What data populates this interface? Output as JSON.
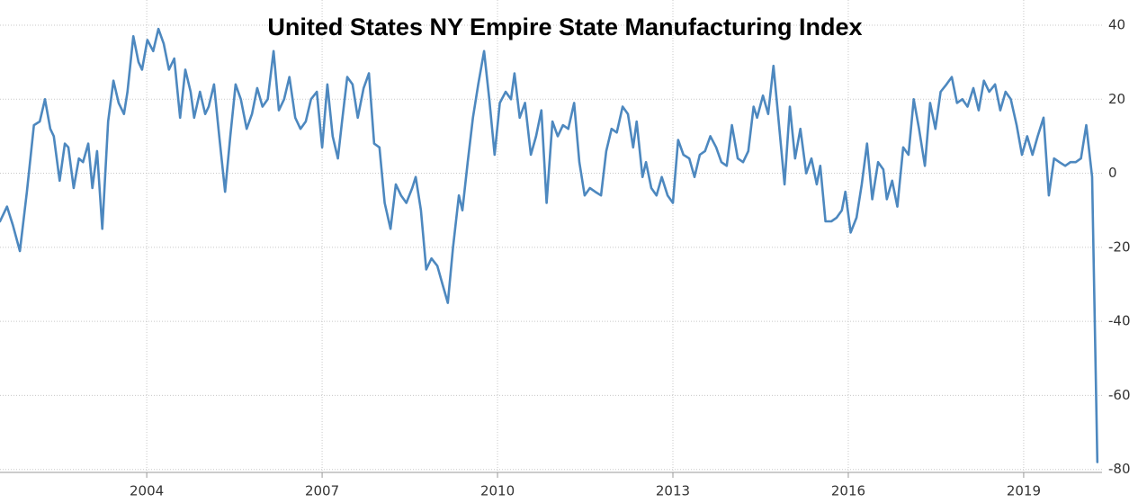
{
  "chart_data": {
    "type": "line",
    "title": "United States NY Empire State Manufacturing Index",
    "x": [
      2001.49,
      2001.61,
      2001.71,
      2001.83,
      2001.95,
      2002.07,
      2002.17,
      2002.26,
      2002.35,
      2002.41,
      2002.51,
      2002.6,
      2002.66,
      2002.75,
      2002.84,
      2002.91,
      2003.0,
      2003.07,
      2003.15,
      2003.24,
      2003.34,
      2003.43,
      2003.52,
      2003.61,
      2003.67,
      2003.77,
      2003.86,
      2003.92,
      2004.01,
      2004.11,
      2004.2,
      2004.29,
      2004.38,
      2004.47,
      2004.57,
      2004.66,
      2004.75,
      2004.81,
      2004.91,
      2005.0,
      2005.06,
      2005.15,
      2005.24,
      2005.34,
      2005.43,
      2005.52,
      2005.61,
      2005.71,
      2005.8,
      2005.89,
      2005.98,
      2006.07,
      2006.17,
      2006.26,
      2006.35,
      2006.44,
      2006.54,
      2006.63,
      2006.72,
      2006.81,
      2006.91,
      2007.0,
      2007.09,
      2007.18,
      2007.27,
      2007.34,
      2007.43,
      2007.52,
      2007.61,
      2007.71,
      2007.8,
      2007.89,
      2007.98,
      2008.07,
      2008.17,
      2008.26,
      2008.35,
      2008.44,
      2008.54,
      2008.6,
      2008.69,
      2008.78,
      2008.87,
      2008.97,
      2009.06,
      2009.15,
      2009.24,
      2009.34,
      2009.4,
      2009.49,
      2009.58,
      2009.67,
      2009.77,
      2009.86,
      2009.95,
      2010.04,
      2010.14,
      2010.23,
      2010.29,
      2010.38,
      2010.47,
      2010.57,
      2010.66,
      2010.75,
      2010.84,
      2010.94,
      2011.03,
      2011.12,
      2011.21,
      2011.31,
      2011.4,
      2011.49,
      2011.58,
      2011.67,
      2011.77,
      2011.86,
      2011.95,
      2012.04,
      2012.14,
      2012.23,
      2012.32,
      2012.38,
      2012.48,
      2012.54,
      2012.63,
      2012.72,
      2012.81,
      2012.91,
      2013.0,
      2013.09,
      2013.18,
      2013.28,
      2013.37,
      2013.46,
      2013.55,
      2013.64,
      2013.74,
      2013.83,
      2013.92,
      2014.01,
      2014.11,
      2014.2,
      2014.29,
      2014.38,
      2014.44,
      2014.54,
      2014.63,
      2014.72,
      2014.81,
      2014.91,
      2015.0,
      2015.09,
      2015.18,
      2015.28,
      2015.37,
      2015.46,
      2015.52,
      2015.61,
      2015.71,
      2015.8,
      2015.89,
      2015.95,
      2016.04,
      2016.14,
      2016.23,
      2016.32,
      2016.41,
      2016.51,
      2016.6,
      2016.66,
      2016.75,
      2016.84,
      2016.94,
      2017.03,
      2017.12,
      2017.21,
      2017.31,
      2017.4,
      2017.49,
      2017.58,
      2017.68,
      2017.77,
      2017.86,
      2017.95,
      2018.04,
      2018.14,
      2018.23,
      2018.32,
      2018.41,
      2018.51,
      2018.6,
      2018.69,
      2018.78,
      2018.88,
      2018.97,
      2019.06,
      2019.15,
      2019.24,
      2019.34,
      2019.43,
      2019.52,
      2019.61,
      2019.71,
      2019.8,
      2019.89,
      2019.98,
      2020.07,
      2020.17,
      2020.26
    ],
    "values": [
      -13,
      -9,
      -14,
      -21,
      -5,
      13,
      14,
      20,
      12,
      10,
      -2,
      8,
      7,
      -4,
      4,
      3,
      8,
      -4,
      6,
      -15,
      14,
      25,
      19,
      16,
      22,
      37,
      30,
      28,
      36,
      33,
      39,
      35,
      28,
      31,
      15,
      28,
      22,
      15,
      22,
      16,
      18,
      24,
      10,
      -5,
      10,
      24,
      20,
      12,
      16,
      23,
      18,
      20,
      33,
      17,
      20,
      26,
      15,
      12,
      14,
      20,
      22,
      7,
      24,
      10,
      4,
      14,
      26,
      24,
      15,
      23,
      27,
      8,
      7,
      -8,
      -15,
      -3,
      -6,
      -8,
      -4,
      -1,
      -10,
      -26,
      -23,
      -25,
      -30,
      -35,
      -20,
      -6,
      -10,
      3,
      15,
      24,
      33,
      20,
      5,
      19,
      22,
      20,
      27,
      15,
      19,
      5,
      10,
      17,
      -8,
      14,
      10,
      13,
      12,
      19,
      3,
      -6,
      -4,
      -5,
      -6,
      6,
      12,
      11,
      18,
      16,
      7,
      14,
      -1,
      3,
      -4,
      -6,
      -1,
      -6,
      -8,
      9,
      5,
      4,
      -1,
      5,
      6,
      10,
      7,
      3,
      2,
      13,
      4,
      3,
      6,
      18,
      15,
      21,
      16,
      29,
      14,
      -3,
      18,
      4,
      12,
      0,
      4,
      -3,
      2,
      -13,
      -13,
      -12,
      -10,
      -5,
      -16,
      -12,
      -3,
      8,
      -7,
      3,
      1,
      -7,
      -2,
      -9,
      7,
      5,
      20,
      12,
      2,
      19,
      12,
      22,
      24,
      26,
      19,
      20,
      18,
      23,
      17,
      25,
      22,
      24,
      17,
      22,
      20,
      13,
      5,
      10,
      5,
      10,
      15,
      -6,
      4,
      3,
      2,
      3,
      3,
      4,
      13,
      -1,
      -78
    ],
    "color": "#4d88bf",
    "xlim": [
      2001.49,
      2020.34
    ],
    "xticks": [
      2004,
      2007,
      2010,
      2013,
      2016,
      2019
    ],
    "ylim": [
      -80.8,
      46.8
    ],
    "yticks": [
      -80,
      -60,
      -40,
      -20,
      0,
      20,
      40
    ],
    "grid": true
  }
}
